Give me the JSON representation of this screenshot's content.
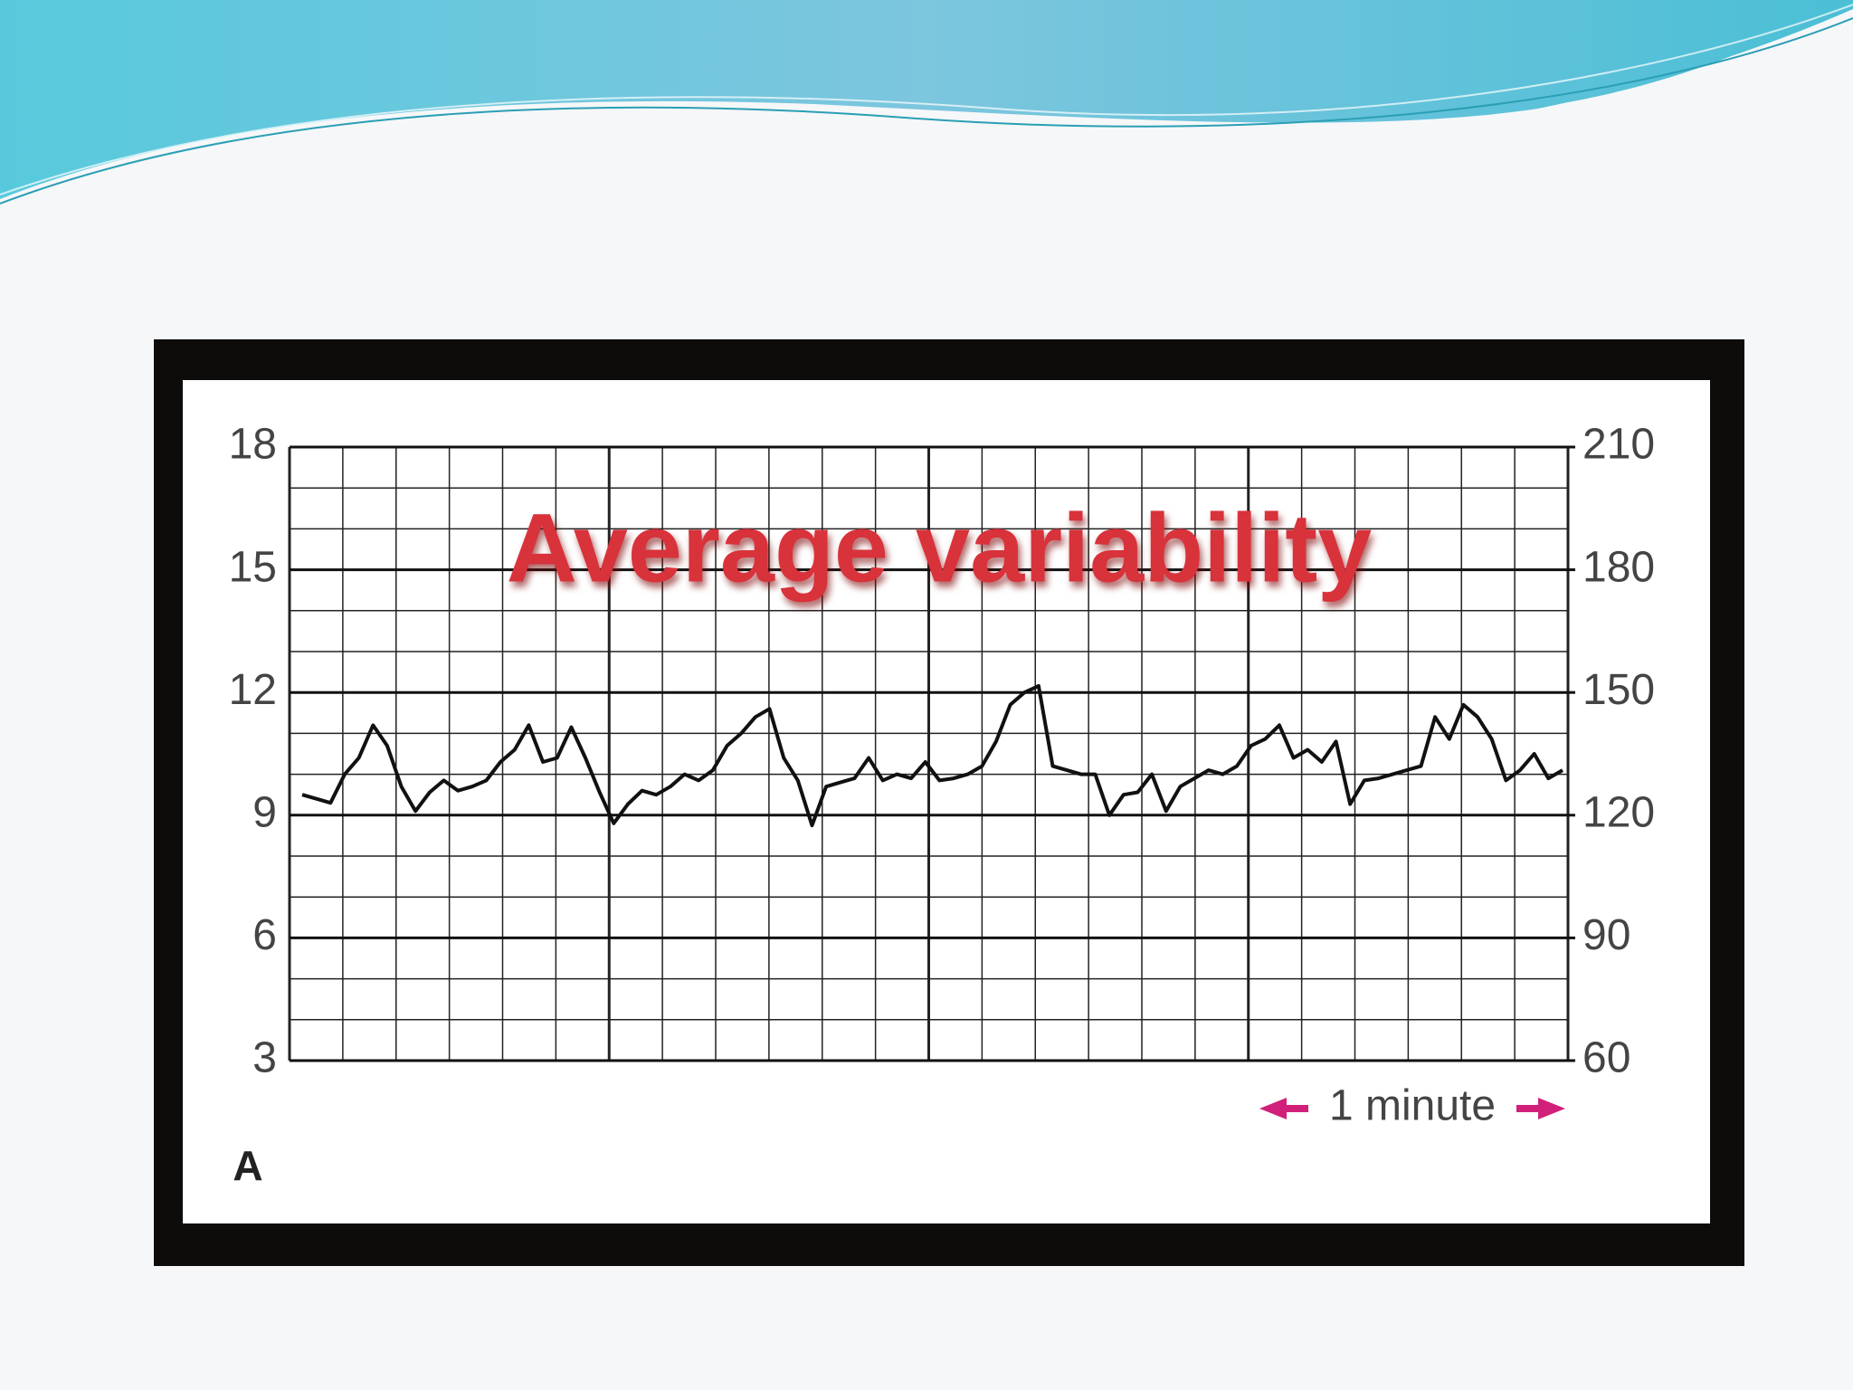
{
  "chart_data": {
    "type": "line",
    "title": "Average variability",
    "annotation": "1 minute",
    "panel_label": "A",
    "ylim": [
      3,
      18
    ],
    "yticks": [
      3,
      6,
      9,
      12,
      15,
      18
    ],
    "y2lim": [
      60,
      210
    ],
    "y2ticks": [
      60,
      90,
      120,
      150,
      180,
      210
    ],
    "grid": true,
    "series": [
      {
        "color": "#111111",
        "axis": "y2",
        "values": [
          125,
          124,
          123,
          130,
          134,
          142,
          137,
          127,
          121,
          125.6,
          128.5,
          126,
          127,
          128.5,
          133,
          136,
          142,
          133,
          134,
          141.5,
          134,
          125.6,
          118,
          122.7,
          126,
          125,
          127,
          130,
          128.5,
          131,
          137,
          140,
          144,
          146,
          134,
          128.5,
          117.5,
          127,
          128,
          129,
          134,
          128.5,
          130,
          129,
          133,
          128.5,
          129,
          130,
          132,
          138,
          147,
          150,
          151.6,
          132,
          131,
          130,
          130,
          120,
          125,
          125.6,
          130,
          121,
          127,
          129,
          131,
          130,
          132,
          137,
          138.6,
          142,
          134,
          136,
          133,
          138,
          122.7,
          128.5,
          129,
          130,
          131,
          132,
          144,
          138.6,
          147,
          144,
          138.6,
          128.5,
          131,
          135,
          129,
          131
        ]
      }
    ]
  }
}
